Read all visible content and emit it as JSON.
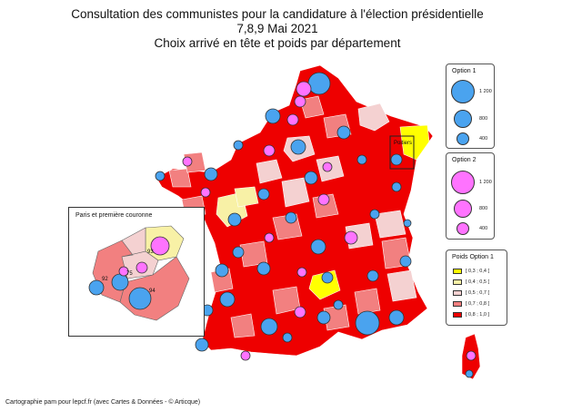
{
  "title": {
    "line1": "Consultation des communistes pour la candidature à l'élection présidentielle",
    "line2": "7,8,9 Mai 2021",
    "line3": "Choix arrivé en tête et poids par département"
  },
  "legend_option1": {
    "title": "Option 1",
    "sizes": [
      "1 200",
      "800",
      "400"
    ],
    "color": "#4aa3ef"
  },
  "legend_option2": {
    "title": "Option 2",
    "sizes": [
      "1 200",
      "800",
      "400"
    ],
    "color": "#ff73ff"
  },
  "legend_weight": {
    "title": "Poids Option 1",
    "classes": [
      {
        "label": "[ 0,3 ; 0,4 [",
        "color": "#ffff00"
      },
      {
        "label": "[ 0,4 ; 0,5 [",
        "color": "#f8f1a6"
      },
      {
        "label": "[ 0,5 ; 0,7 [",
        "color": "#f4d1d1"
      },
      {
        "label": "[ 0,7 ; 0,8 [",
        "color": "#f28080"
      },
      {
        "label": "[ 0,8 ; 1,0 ]",
        "color": "#ee0000"
      }
    ]
  },
  "map_label": "Poitiers",
  "inset": {
    "title": "Paris et première couronne",
    "labels": [
      "93",
      "92",
      "75",
      "94"
    ]
  },
  "footer": "Cartographie pam pour lepcf.fr (avec Cartes & Données - © Articque)"
}
